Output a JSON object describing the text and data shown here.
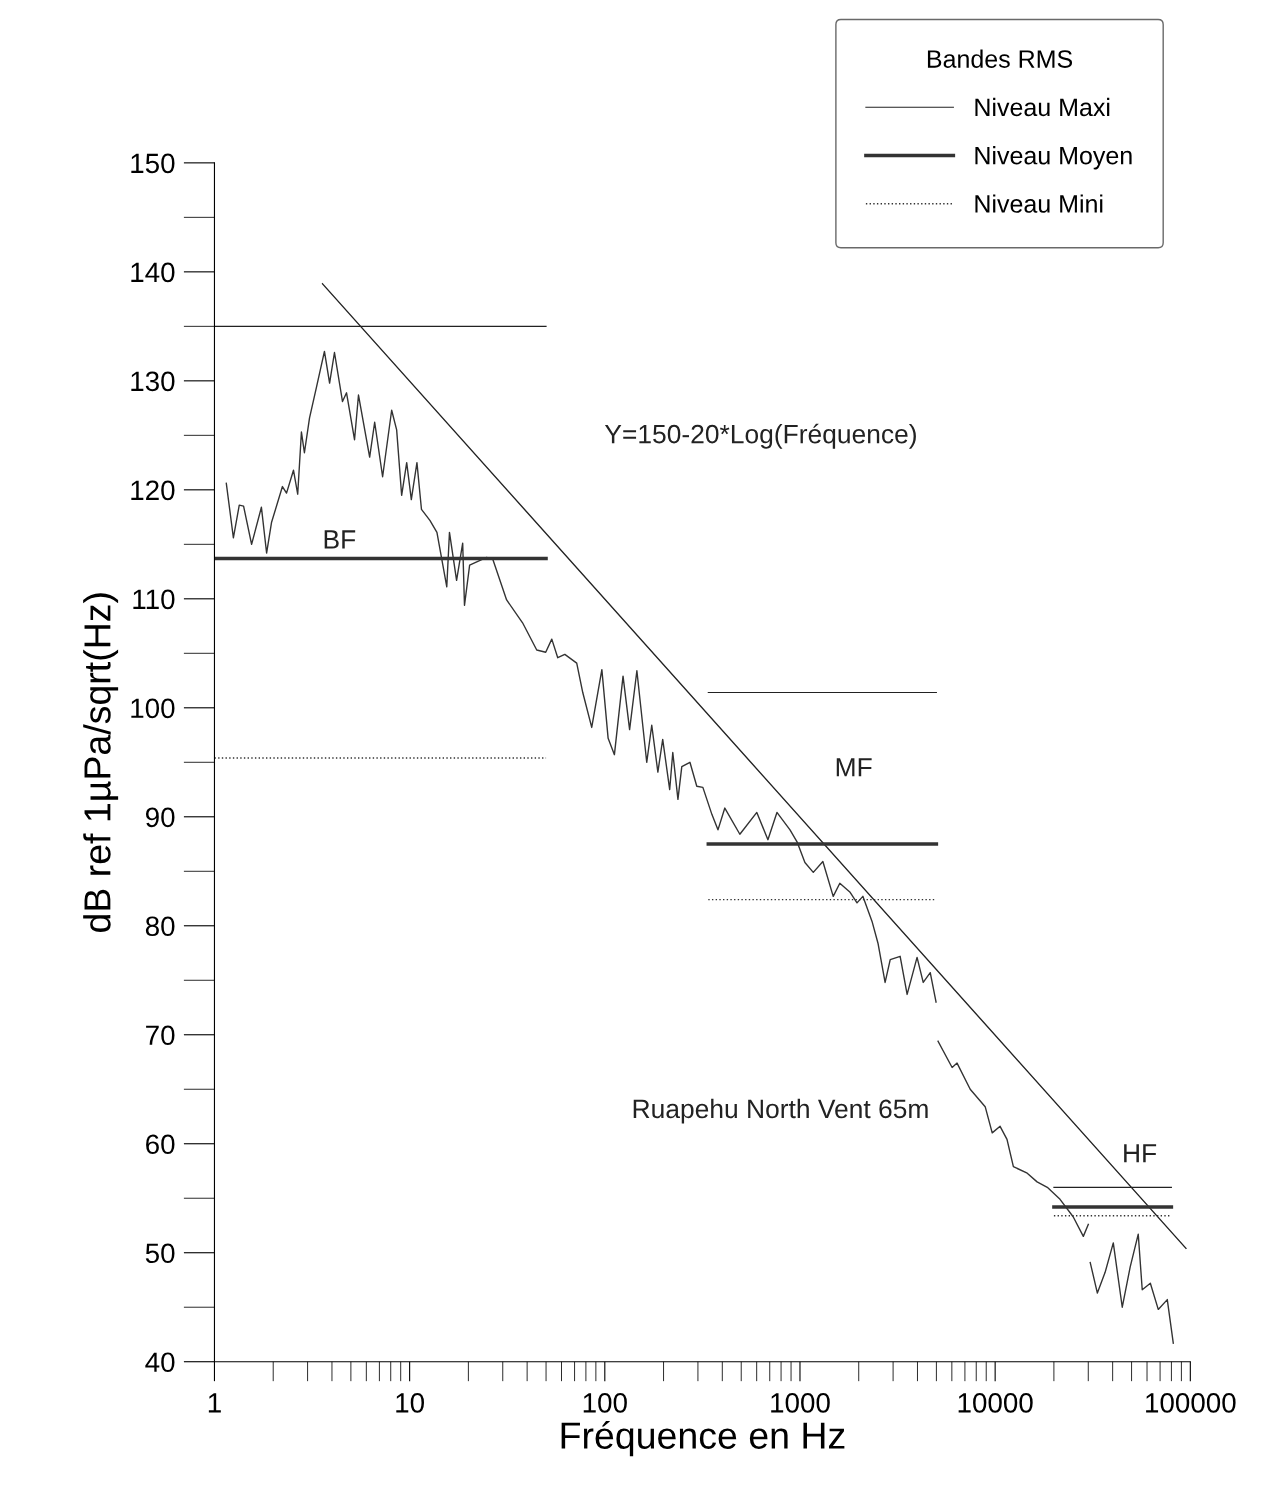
{
  "chart_data": {
    "type": "line",
    "xlabel": "Fréquence en Hz",
    "ylabel": "dB ref 1µPa/sqrt(Hz)",
    "legend_title": "Bandes RMS",
    "legend": "top right",
    "grid": false,
    "log": "x",
    "marker": "none",
    "xlim": [
      1,
      100000
    ],
    "ylim": [
      40,
      150
    ],
    "xticks": [
      1,
      10,
      100,
      1000,
      10000,
      100000
    ],
    "yticks": [
      40,
      50,
      60,
      70,
      80,
      90,
      100,
      110,
      120,
      130,
      140,
      150
    ],
    "series": [
      {
        "color": "#333333",
        "line_style": "solid",
        "x": [
          1.15,
          1.25,
          1.34,
          1.41,
          1.55,
          1.74,
          1.85,
          1.96,
          2.23,
          2.34,
          2.54,
          2.67,
          2.79,
          2.89,
          3.07,
          3.33,
          3.66,
          3.89,
          4.12,
          4.53,
          4.75,
          5.22,
          5.47,
          6.24,
          6.62,
          7.27,
          8.09,
          8.58,
          9.1,
          9.66,
          10.2,
          10.9,
          11.5,
          12.7,
          13.8,
          15.5,
          16.0,
          17.4,
          18.7,
          19.1,
          20.3,
          24.8,
          26.7,
          31.4,
          37.9,
          44.8,
          49.8,
          53.5,
          57.4,
          62.4,
          71.8,
          77.1,
          85.7,
          96.6,
          104,
          112,
          124,
          134,
          146,
          164,
          174,
          187,
          198,
          215,
          223,
          237,
          248,
          273,
          296,
          318,
          354,
          380,
          412,
          492,
          601,
          685,
          762,
          889,
          966,
          1060,
          1170,
          1310,
          1480,
          1600,
          1800,
          1960,
          2100,
          2340,
          2510,
          2730,
          2900,
          3260,
          3540,
          3980,
          4280,
          4650,
          4980,
          5040,
          5100,
          6020,
          6380,
          7450,
          8890,
          9660,
          10600,
          11500,
          12400,
          14600,
          16400,
          18500,
          21500,
          25100,
          28300,
          30000,
          30300,
          30700,
          33400,
          36600,
          40300,
          44800,
          49200,
          54100,
          56700,
          62400,
          68500,
          76200,
          81800
        ],
        "values": [
          120.6,
          115.6,
          118.6,
          118.5,
          115.0,
          118.4,
          114.2,
          117.0,
          120.3,
          119.7,
          121.8,
          119.6,
          125.3,
          123.4,
          126.6,
          129.4,
          132.7,
          129.8,
          132.6,
          128.1,
          128.9,
          124.6,
          128.7,
          123.0,
          126.2,
          121.2,
          127.3,
          125.5,
          119.5,
          122.5,
          119.1,
          122.5,
          118.2,
          117.2,
          116.1,
          111.1,
          116.1,
          111.7,
          115.1,
          109.4,
          113.1,
          113.8,
          113.6,
          109.9,
          107.8,
          105.3,
          105.1,
          106.3,
          104.6,
          104.9,
          104.1,
          101.4,
          98.2,
          103.5,
          97.2,
          95.7,
          102.9,
          98.0,
          103.4,
          95.0,
          98.4,
          94.1,
          97.1,
          92.5,
          95.9,
          91.6,
          94.6,
          95.0,
          92.8,
          92.7,
          90.2,
          88.8,
          90.8,
          88.4,
          90.4,
          87.9,
          90.4,
          88.8,
          87.7,
          85.8,
          84.9,
          85.9,
          82.7,
          83.9,
          83.1,
          82.1,
          82.7,
          80.4,
          78.4,
          74.8,
          76.9,
          77.2,
          73.7,
          77.1,
          74.8,
          75.7,
          73.0,
          null,
          69.4,
          67.0,
          67.4,
          65.0,
          63.4,
          61.0,
          61.6,
          60.4,
          57.9,
          57.3,
          56.5,
          56.0,
          54.9,
          53.3,
          51.5,
          52.6,
          null,
          49.1,
          46.3,
          48.2,
          50.9,
          45.0,
          48.7,
          51.7,
          46.6,
          47.2,
          44.8,
          45.7,
          41.7
        ]
      },
      {
        "color": "#222222",
        "line_style": "solid",
        "x": [
          3.58,
          95000
        ],
        "values": [
          138.9,
          50.4
        ]
      },
      {
        "name": "Niveau Maxi",
        "color": "#222222",
        "line_style": "solid",
        "x": [
          1,
          50
        ],
        "values": [
          135,
          135
        ]
      },
      {
        "name": "Niveau Moyen",
        "color": "#333333",
        "line_style": "solid",
        "x": [
          1,
          50
        ],
        "values": [
          113.7,
          113.7
        ]
      },
      {
        "name": "Niveau Mini",
        "color": "#333333",
        "line_style": "dotted",
        "x": [
          1,
          50
        ],
        "values": [
          95.4,
          95.4
        ]
      },
      {
        "color": "#222222",
        "line_style": "solid",
        "x": [
          339,
          5000
        ],
        "values": [
          101.4,
          101.4
        ]
      },
      {
        "color": "#333333",
        "line_style": "solid",
        "x": [
          339,
          5000
        ],
        "values": [
          87.5,
          87.5
        ]
      },
      {
        "color": "#333333",
        "line_style": "dotted",
        "x": [
          339,
          5000
        ],
        "values": [
          82.4,
          82.4
        ]
      },
      {
        "color": "#222222",
        "line_style": "solid",
        "x": [
          20000,
          80000
        ],
        "values": [
          56,
          56
        ]
      },
      {
        "color": "#333333",
        "line_style": "solid",
        "x": [
          20000,
          80000
        ],
        "values": [
          54.2,
          54.2
        ]
      },
      {
        "color": "#333333",
        "line_style": "dotted",
        "x": [
          20000,
          80000
        ],
        "values": [
          53.4,
          53.4
        ]
      }
    ],
    "annotations": [
      "BF",
      "MF",
      "HF",
      "Y=150-20*Log(Fréquence)",
      "Ruapehu North Vent 65m"
    ]
  }
}
